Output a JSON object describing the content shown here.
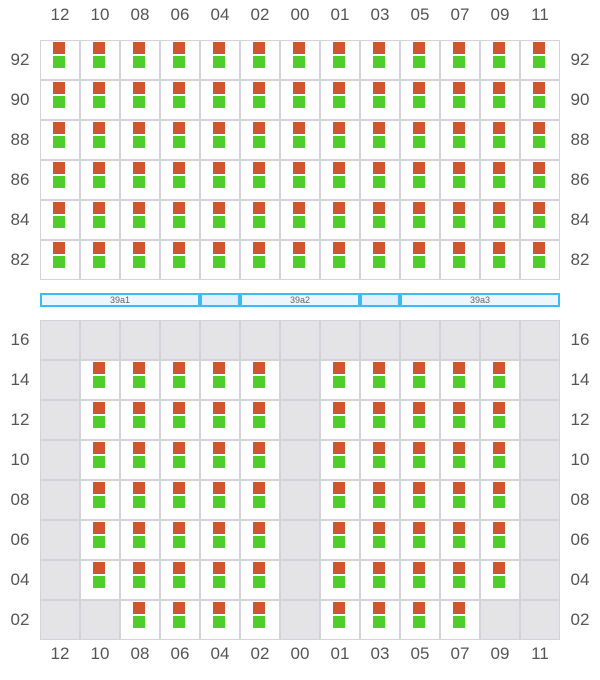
{
  "colors": {
    "top": "#d05430",
    "bottom": "#4fcd2b",
    "grid": "#d4d4d8",
    "empty": "#e4e4e7",
    "bar": "#3bbcf5"
  },
  "columns": [
    "12",
    "10",
    "08",
    "06",
    "04",
    "02",
    "00",
    "01",
    "03",
    "05",
    "07",
    "09",
    "11"
  ],
  "top_section": {
    "rows": [
      {
        "label": "92",
        "occupancy": "1111111111111"
      },
      {
        "label": "90",
        "occupancy": "1111111111111"
      },
      {
        "label": "88",
        "occupancy": "1111111111111"
      },
      {
        "label": "86",
        "occupancy": "1111111111111"
      },
      {
        "label": "84",
        "occupancy": "1111111111111"
      },
      {
        "label": "82",
        "occupancy": "1111111111111"
      }
    ]
  },
  "bar": {
    "segments": [
      {
        "label": "39a1",
        "span": 4,
        "kind": "main"
      },
      {
        "label": "",
        "span": 1,
        "kind": "gap"
      },
      {
        "label": "39a2",
        "span": 3,
        "kind": "main"
      },
      {
        "label": "",
        "span": 1,
        "kind": "gap"
      },
      {
        "label": "39a3",
        "span": 4,
        "kind": "main"
      }
    ]
  },
  "bottom_section": {
    "rows": [
      {
        "label": "16",
        "occupancy": "0000000000000"
      },
      {
        "label": "14",
        "occupancy": "0111110111110"
      },
      {
        "label": "12",
        "occupancy": "0111110111110"
      },
      {
        "label": "10",
        "occupancy": "0111110111110"
      },
      {
        "label": "08",
        "occupancy": "0111110111110"
      },
      {
        "label": "06",
        "occupancy": "0111110111110"
      },
      {
        "label": "04",
        "occupancy": "0111110111110"
      },
      {
        "label": "02",
        "occupancy": "0011110111100"
      }
    ]
  }
}
